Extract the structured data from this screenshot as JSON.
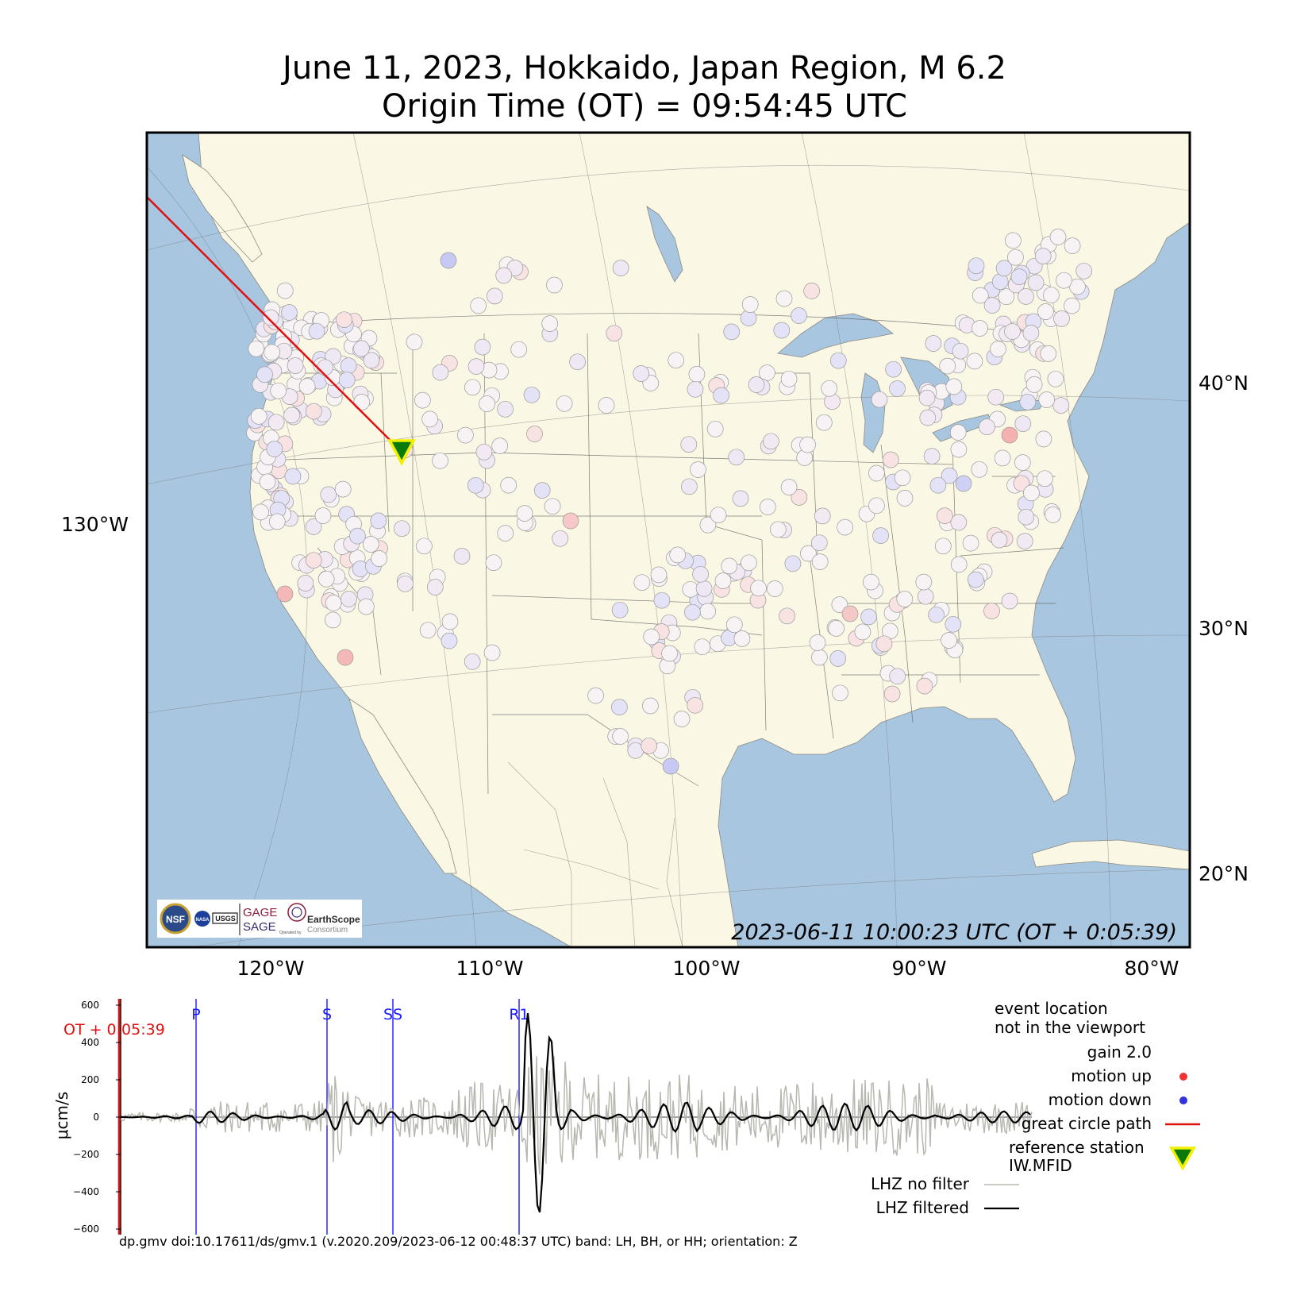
{
  "title": {
    "line1": "June 11, 2023, Hokkaido, Japan Region, M 6.2",
    "line2": "Origin Time (OT) = 09:54:45 UTC"
  },
  "map": {
    "timestamp": "2023-06-11 10:00:23 UTC (OT + 0:05:39)",
    "lon_labels": [
      "120°W",
      "110°W",
      "100°W",
      "90°W",
      "80°W"
    ],
    "lat_labels": [
      "40°N",
      "30°N",
      "20°N"
    ],
    "left_label": "130°W",
    "colors": {
      "ocean": "#a9c6e1",
      "land": "#fbf7e5",
      "path": "#e01010",
      "station": "#f7f3f5"
    },
    "logos": {
      "gage": "GAGE",
      "sage": "SAGE",
      "earthscope": "EarthScope",
      "consortium": "Consortium",
      "operated_by": "Operated by",
      "nsf": "NSF",
      "nasa": "NASA",
      "usgs": "USGS"
    }
  },
  "waveform": {
    "ylabel": "μcm/s",
    "yticks": [
      "600",
      "400",
      "200",
      "0",
      "−200",
      "−400",
      "−600"
    ],
    "ot_label": "OT + 0:05:39",
    "phases": [
      "P",
      "S",
      "SS",
      "R1"
    ],
    "footer": "dp.gmv doi:10.17611/ds/gmv.1 (v.2020.209/2023-06-12 00:48:37 UTC) band: LH, BH, or HH; orientation: Z"
  },
  "legend": {
    "event_line1": "event location",
    "event_line2": "not in the viewport",
    "gain": "gain  2.0",
    "motion_up": "motion up",
    "motion_down": "motion down",
    "great_circle": "great circle path",
    "ref_station_line1": "reference station",
    "ref_station_line2": "IW.MFID",
    "no_filter": "LHZ no filter",
    "filtered": "LHZ filtered",
    "colors": {
      "up": "#ee3333",
      "down": "#3333dd",
      "path": "#e01010",
      "no_filter": "#b8b8b0",
      "filtered": "#000000",
      "ref_fill": "#0a7a0a",
      "ref_edge": "#f0f000"
    }
  }
}
